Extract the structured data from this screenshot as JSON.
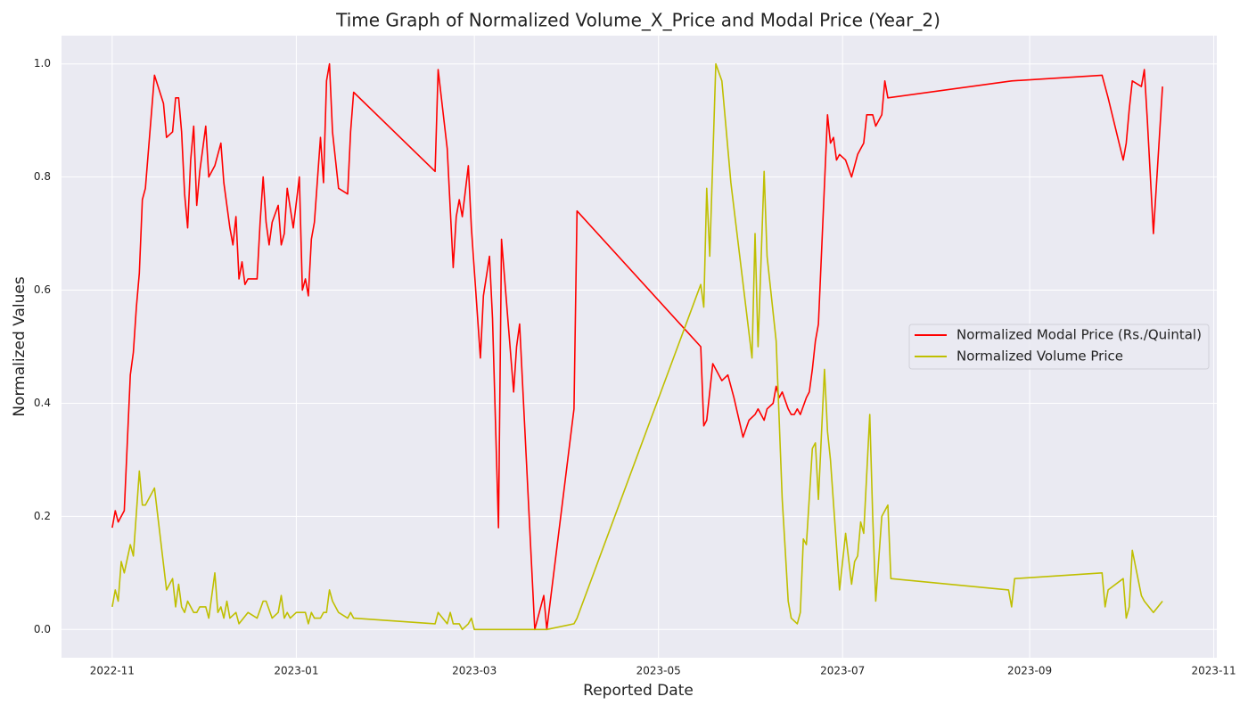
{
  "chart_data": {
    "type": "line",
    "title": "Time Graph of Normalized Volume_X_Price and Modal Price (Year_2)",
    "xlabel": "Reported Date",
    "ylabel": "Normalized Values",
    "xlim": [
      -16.8,
      366
    ],
    "xticks": [
      {
        "value": 0,
        "label": "2022-11"
      },
      {
        "value": 61,
        "label": "2023-01"
      },
      {
        "value": 120,
        "label": "2023-03"
      },
      {
        "value": 181,
        "label": "2023-05"
      },
      {
        "value": 242,
        "label": "2023-07"
      },
      {
        "value": 304,
        "label": "2023-09"
      },
      {
        "value": 365,
        "label": "2023-11"
      }
    ],
    "ylim": [
      -0.05,
      1.05
    ],
    "yticks": [
      {
        "value": 0,
        "label": "0.0"
      },
      {
        "value": 0.2,
        "label": "0.2"
      },
      {
        "value": 0.4,
        "label": "0.4"
      },
      {
        "value": 0.6,
        "label": "0.6"
      },
      {
        "value": 0.8,
        "label": "0.8"
      },
      {
        "value": 1,
        "label": "1.0"
      }
    ],
    "grid": true,
    "legend": "center right",
    "series": [
      {
        "name": "Normalized Modal Price (Rs./Quintal)",
        "color": "#ff0000",
        "x": [
          0,
          1,
          2,
          4,
          6,
          7,
          8,
          9,
          10,
          11,
          14,
          17,
          18,
          20,
          21,
          22,
          23,
          24,
          25,
          26,
          27,
          28,
          29,
          31,
          32,
          34,
          36,
          37,
          39,
          40,
          41,
          42,
          43,
          44,
          45,
          48,
          49,
          50,
          51,
          52,
          53,
          55,
          56,
          57,
          58,
          60,
          62,
          63,
          64,
          65,
          66,
          67,
          69,
          70,
          71,
          72,
          73,
          75,
          78,
          79,
          80,
          107,
          108,
          111,
          113,
          114,
          115,
          116,
          118,
          119,
          122,
          123,
          125,
          126,
          128,
          129,
          133,
          134,
          135,
          140,
          143,
          144,
          153,
          154,
          195,
          196,
          197,
          199,
          202,
          204,
          206,
          209,
          211,
          213,
          214,
          216,
          217,
          219,
          220,
          221,
          222,
          224,
          225,
          226,
          227,
          228,
          230,
          231,
          232,
          233,
          234,
          237,
          238,
          239,
          240,
          241,
          243,
          245,
          247,
          248,
          249,
          250,
          252,
          253,
          255,
          256,
          257,
          298,
          328,
          329,
          330,
          335,
          336,
          337,
          338,
          341,
          342,
          343,
          345,
          348
        ],
        "values": [
          0.18,
          0.21,
          0.19,
          0.21,
          0.45,
          0.49,
          0.57,
          0.63,
          0.76,
          0.78,
          0.98,
          0.93,
          0.87,
          0.88,
          0.94,
          0.94,
          0.88,
          0.77,
          0.71,
          0.83,
          0.89,
          0.75,
          0.81,
          0.89,
          0.8,
          0.82,
          0.86,
          0.79,
          0.71,
          0.68,
          0.73,
          0.62,
          0.65,
          0.61,
          0.62,
          0.62,
          0.72,
          0.8,
          0.72,
          0.68,
          0.72,
          0.75,
          0.68,
          0.7,
          0.78,
          0.71,
          0.8,
          0.6,
          0.62,
          0.59,
          0.69,
          0.72,
          0.87,
          0.79,
          0.97,
          1.0,
          0.88,
          0.78,
          0.77,
          0.88,
          0.95,
          0.81,
          0.99,
          0.85,
          0.64,
          0.73,
          0.76,
          0.73,
          0.82,
          0.71,
          0.48,
          0.59,
          0.66,
          0.55,
          0.18,
          0.69,
          0.42,
          0.5,
          0.54,
          0.0,
          0.06,
          0.0,
          0.39,
          0.74,
          0.5,
          0.36,
          0.37,
          0.47,
          0.44,
          0.45,
          0.41,
          0.34,
          0.37,
          0.38,
          0.39,
          0.37,
          0.39,
          0.4,
          0.43,
          0.41,
          0.42,
          0.39,
          0.38,
          0.38,
          0.39,
          0.38,
          0.41,
          0.42,
          0.46,
          0.51,
          0.54,
          0.91,
          0.86,
          0.87,
          0.83,
          0.84,
          0.83,
          0.8,
          0.84,
          0.85,
          0.86,
          0.91,
          0.91,
          0.89,
          0.91,
          0.97,
          0.94,
          0.97,
          0.98,
          0.96,
          0.94,
          0.83,
          0.86,
          0.92,
          0.97,
          0.96,
          0.99,
          0.9,
          0.7,
          0.96
        ]
      },
      {
        "name": "Normalized Volume Price",
        "color": "#bfbf00",
        "x": [
          0,
          1,
          2,
          3,
          4,
          6,
          7,
          9,
          10,
          11,
          14,
          18,
          20,
          21,
          22,
          23,
          24,
          25,
          27,
          28,
          29,
          31,
          32,
          34,
          35,
          36,
          37,
          38,
          39,
          41,
          42,
          45,
          48,
          50,
          51,
          53,
          55,
          56,
          57,
          58,
          59,
          61,
          64,
          65,
          66,
          67,
          69,
          70,
          71,
          72,
          73,
          75,
          78,
          79,
          80,
          107,
          108,
          111,
          112,
          113,
          115,
          116,
          118,
          119,
          120,
          123,
          124,
          128,
          133,
          134,
          140,
          144,
          153,
          154,
          195,
          196,
          197,
          198,
          200,
          202,
          205,
          212,
          213,
          214,
          216,
          217,
          220,
          222,
          223,
          224,
          225,
          227,
          228,
          229,
          230,
          232,
          233,
          234,
          236,
          237,
          238,
          241,
          243,
          245,
          246,
          247,
          248,
          249,
          251,
          252,
          253,
          255,
          257,
          258,
          297,
          298,
          299,
          328,
          329,
          330,
          335,
          336,
          337,
          338,
          341,
          342,
          345,
          348
        ],
        "values": [
          0.04,
          0.07,
          0.05,
          0.12,
          0.1,
          0.15,
          0.13,
          0.28,
          0.22,
          0.22,
          0.25,
          0.07,
          0.09,
          0.04,
          0.08,
          0.04,
          0.03,
          0.05,
          0.03,
          0.03,
          0.04,
          0.04,
          0.02,
          0.1,
          0.03,
          0.04,
          0.02,
          0.05,
          0.02,
          0.03,
          0.01,
          0.03,
          0.02,
          0.05,
          0.05,
          0.02,
          0.03,
          0.06,
          0.02,
          0.03,
          0.02,
          0.03,
          0.03,
          0.01,
          0.03,
          0.02,
          0.02,
          0.03,
          0.03,
          0.07,
          0.05,
          0.03,
          0.02,
          0.03,
          0.02,
          0.01,
          0.03,
          0.01,
          0.03,
          0.01,
          0.01,
          0.0,
          0.01,
          0.02,
          0.0,
          0.0,
          0.0,
          0.0,
          0.0,
          0.0,
          0.0,
          0.0,
          0.01,
          0.02,
          0.61,
          0.57,
          0.78,
          0.66,
          1.0,
          0.97,
          0.79,
          0.48,
          0.7,
          0.5,
          0.81,
          0.66,
          0.51,
          0.23,
          0.14,
          0.05,
          0.02,
          0.01,
          0.03,
          0.16,
          0.15,
          0.32,
          0.33,
          0.23,
          0.46,
          0.35,
          0.3,
          0.07,
          0.17,
          0.08,
          0.12,
          0.13,
          0.19,
          0.17,
          0.38,
          0.2,
          0.05,
          0.2,
          0.22,
          0.09,
          0.07,
          0.04,
          0.09,
          0.1,
          0.04,
          0.07,
          0.09,
          0.02,
          0.04,
          0.14,
          0.06,
          0.05,
          0.03,
          0.05
        ]
      }
    ]
  }
}
